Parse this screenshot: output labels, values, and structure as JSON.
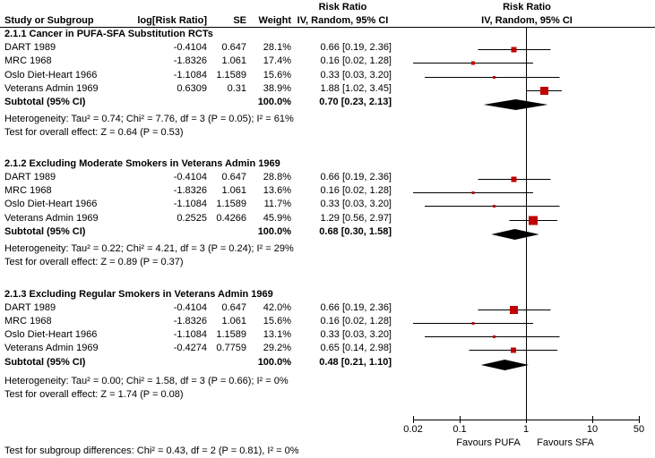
{
  "chart_data": {
    "type": "forest",
    "scale": "log10",
    "effect_label": "Risk Ratio",
    "model_label": "IV, Random, 95% CI",
    "columns": {
      "study": "Study or Subgroup",
      "log_rr": "log[Risk Ratio]",
      "se": "SE",
      "weight": "Weight"
    },
    "subgroups": [
      {
        "title": "2.1.1 Cancer in PUFA-SFA Substitution RCTs",
        "studies": [
          {
            "name": "DART 1989",
            "log_rr": "-0.4104",
            "se": "0.647",
            "weight": "28.1%",
            "weight_pct": 28.1,
            "ci_text": "0.66 [0.19, 2.36]",
            "rr": 0.66,
            "lo": 0.19,
            "hi": 2.36
          },
          {
            "name": "MRC 1968",
            "log_rr": "-1.8326",
            "se": "1.061",
            "weight": "17.4%",
            "weight_pct": 17.4,
            "ci_text": "0.16 [0.02, 1.28]",
            "rr": 0.16,
            "lo": 0.02,
            "hi": 1.28
          },
          {
            "name": "Oslo Diet-Heart 1966",
            "log_rr": "-1.1084",
            "se": "1.1589",
            "weight": "15.6%",
            "weight_pct": 15.6,
            "ci_text": "0.33 [0.03, 3.20]",
            "rr": 0.33,
            "lo": 0.03,
            "hi": 3.2
          },
          {
            "name": "Veterans Admin 1969",
            "log_rr": "0.6309",
            "se": "0.31",
            "weight": "38.9%",
            "weight_pct": 38.9,
            "ci_text": "1.88 [1.02, 3.45]",
            "rr": 1.88,
            "lo": 1.02,
            "hi": 3.45
          }
        ],
        "subtotal": {
          "label": "Subtotal (95% CI)",
          "weight": "100.0%",
          "ci_text": "0.70 [0.23, 2.13]",
          "rr": 0.7,
          "lo": 0.23,
          "hi": 2.13
        },
        "heterogeneity": "Heterogeneity: Tau² = 0.74; Chi² = 7.76, df = 3 (P = 0.05); I² = 61%",
        "overall": "Test for overall effect: Z = 0.64 (P = 0.53)"
      },
      {
        "title": "2.1.2 Excluding Moderate Smokers in Veterans Admin 1969",
        "studies": [
          {
            "name": "DART 1989",
            "log_rr": "-0.4104",
            "se": "0.647",
            "weight": "28.8%",
            "weight_pct": 28.8,
            "ci_text": "0.66 [0.19, 2.36]",
            "rr": 0.66,
            "lo": 0.19,
            "hi": 2.36
          },
          {
            "name": "MRC 1968",
            "log_rr": "-1.8326",
            "se": "1.061",
            "weight": "13.6%",
            "weight_pct": 13.6,
            "ci_text": "0.16 [0.02, 1.28]",
            "rr": 0.16,
            "lo": 0.02,
            "hi": 1.28
          },
          {
            "name": "Oslo Diet-Heart 1966",
            "log_rr": "-1.1084",
            "se": "1.1589",
            "weight": "11.7%",
            "weight_pct": 11.7,
            "ci_text": "0.33 [0.03, 3.20]",
            "rr": 0.33,
            "lo": 0.03,
            "hi": 3.2
          },
          {
            "name": "Veterans Admin 1969",
            "log_rr": "0.2525",
            "se": "0.4266",
            "weight": "45.9%",
            "weight_pct": 45.9,
            "ci_text": "1.29 [0.56, 2.97]",
            "rr": 1.29,
            "lo": 0.56,
            "hi": 2.97
          }
        ],
        "subtotal": {
          "label": "Subtotal (95% CI)",
          "weight": "100.0%",
          "ci_text": "0.68 [0.30, 1.58]",
          "rr": 0.68,
          "lo": 0.3,
          "hi": 1.58
        },
        "heterogeneity": "Heterogeneity: Tau² = 0.22; Chi² = 4.21, df = 3 (P = 0.24); I² = 29%",
        "overall": "Test for overall effect: Z = 0.89 (P = 0.37)"
      },
      {
        "title": "2.1.3 Excluding Regular Smokers in Veterans Admin 1969",
        "studies": [
          {
            "name": "DART 1989",
            "log_rr": "-0.4104",
            "se": "0.647",
            "weight": "42.0%",
            "weight_pct": 42.0,
            "ci_text": "0.66 [0.19, 2.36]",
            "rr": 0.66,
            "lo": 0.19,
            "hi": 2.36
          },
          {
            "name": "MRC 1968",
            "log_rr": "-1.8326",
            "se": "1.061",
            "weight": "15.6%",
            "weight_pct": 15.6,
            "ci_text": "0.16 [0.02, 1.28]",
            "rr": 0.16,
            "lo": 0.02,
            "hi": 1.28
          },
          {
            "name": "Oslo Diet-Heart 1966",
            "log_rr": "-1.1084",
            "se": "1.1589",
            "weight": "13.1%",
            "weight_pct": 13.1,
            "ci_text": "0.33 [0.03, 3.20]",
            "rr": 0.33,
            "lo": 0.03,
            "hi": 3.2
          },
          {
            "name": "Veterans Admin 1969",
            "log_rr": "-0.4274",
            "se": "0.7759",
            "weight": "29.2%",
            "weight_pct": 29.2,
            "ci_text": "0.65 [0.14, 2.98]",
            "rr": 0.65,
            "lo": 0.14,
            "hi": 2.98
          }
        ],
        "subtotal": {
          "label": "Subtotal (95% CI)",
          "weight": "100.0%",
          "ci_text": "0.48 [0.21, 1.10]",
          "rr": 0.48,
          "lo": 0.21,
          "hi": 1.1
        },
        "heterogeneity": "Heterogeneity: Tau² = 0.00; Chi² = 1.58, df = 3 (P = 0.66); I² = 0%",
        "overall": "Test for overall effect: Z = 1.74 (P = 0.08)"
      }
    ],
    "x_axis": {
      "min": 0.02,
      "max": 50,
      "ticks": [
        0.02,
        0.1,
        1,
        10,
        50
      ],
      "tick_labels": [
        "0.02",
        "0.1",
        "1",
        "10",
        "50"
      ],
      "left_label": "Favours PUFA",
      "right_label": "Favours SFA"
    },
    "footer": "Test for subgroup differences: Chi² = 0.43, df = 2 (P = 0.81), I² = 0%",
    "colors": {
      "marker": "#bf0000",
      "diamond": "#000000",
      "line": "#000000",
      "text": "#000000",
      "background": "#ffffff"
    }
  }
}
